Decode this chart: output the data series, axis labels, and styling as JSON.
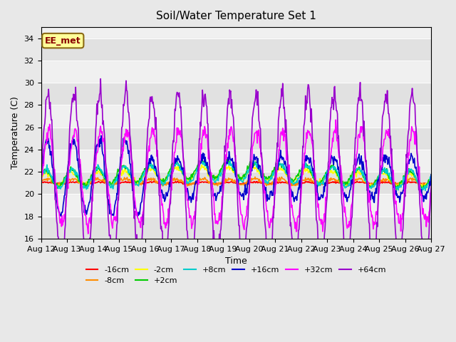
{
  "title": "Soil/Water Temperature Set 1",
  "xlabel": "Time",
  "ylabel": "Temperature (C)",
  "ylim": [
    16,
    35
  ],
  "yticks": [
    16,
    18,
    20,
    22,
    24,
    26,
    28,
    30,
    32,
    34
  ],
  "xtick_labels": [
    "Aug 12",
    "Aug 13",
    "Aug 14",
    "Aug 15",
    "Aug 16",
    "Aug 17",
    "Aug 18",
    "Aug 19",
    "Aug 20",
    "Aug 21",
    "Aug 22",
    "Aug 23",
    "Aug 24",
    "Aug 25",
    "Aug 26",
    "Aug 27"
  ],
  "annotation": "EE_met",
  "annotation_color": "#8B0000",
  "annotation_bg": "#FFFF99",
  "annotation_edge": "#8B6914",
  "bg_color": "#E8E8E8",
  "plot_bg": "#F0F0F0",
  "series_colors": {
    "-16cm": "#FF0000",
    "-8cm": "#FF8C00",
    "-2cm": "#FFFF00",
    "+2cm": "#00CC00",
    "+8cm": "#00CCCC",
    "+16cm": "#0000CC",
    "+32cm": "#FF00FF",
    "+64cm": "#9900CC"
  },
  "n_points": 721
}
